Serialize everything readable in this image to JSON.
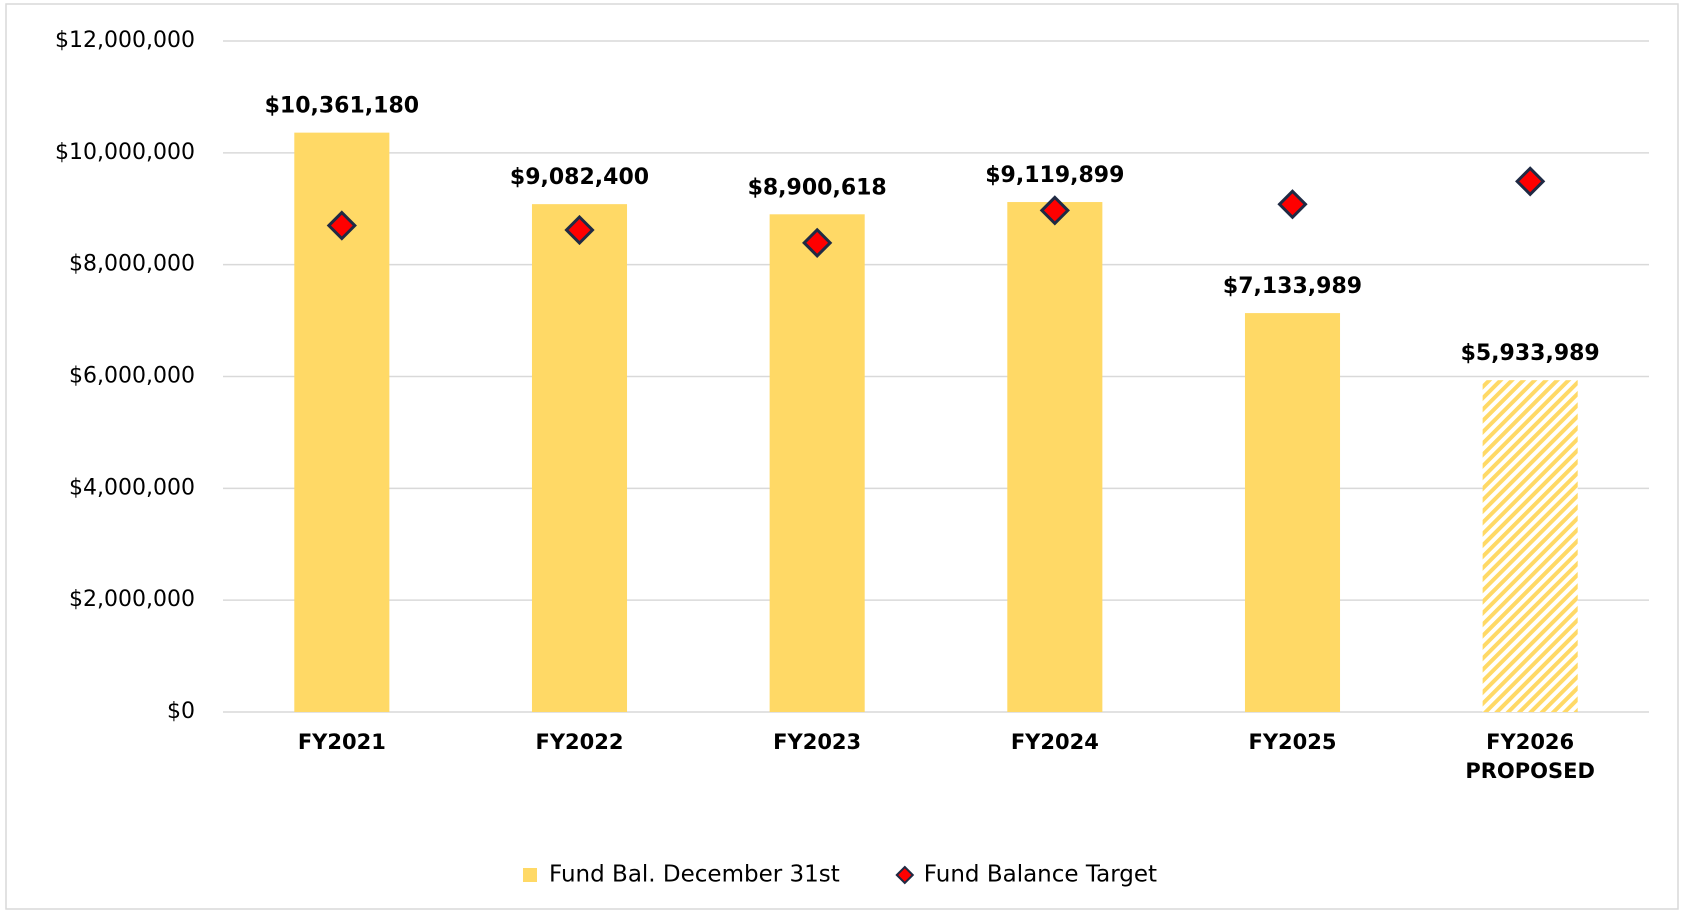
{
  "chart_data": {
    "type": "bar",
    "categories": [
      "FY2021",
      "FY2022",
      "FY2023",
      "FY2024",
      "FY2025",
      "FY2026 PROPOSED"
    ],
    "series": [
      {
        "name": "Fund Bal. December 31st",
        "type": "bar",
        "color": "#FFD966",
        "values": [
          10361180,
          9082400,
          8900618,
          9119899,
          7133989,
          5933989
        ],
        "value_labels": [
          "$10,361,180",
          "$9,082,400",
          "$8,900,618",
          "$9,119,899",
          "$7,133,989",
          "$5,933,989"
        ],
        "hatched": [
          false,
          false,
          false,
          false,
          false,
          true
        ]
      },
      {
        "name": "Fund Balance Target",
        "type": "diamond",
        "color": "#FF0000",
        "edge_color": "#1F2A44",
        "values": [
          8700000,
          8620000,
          8390000,
          8970000,
          9080000,
          9490000
        ]
      }
    ],
    "ylim": [
      0,
      12000000
    ],
    "yticks": [
      {
        "value": 0,
        "label": "$0"
      },
      {
        "value": 2000000,
        "label": "$2,000,000"
      },
      {
        "value": 4000000,
        "label": "$4,000,000"
      },
      {
        "value": 6000000,
        "label": "$6,000,000"
      },
      {
        "value": 8000000,
        "label": "$8,000,000"
      },
      {
        "value": 10000000,
        "label": "$10,000,000"
      },
      {
        "value": 12000000,
        "label": "$12,000,000"
      }
    ],
    "grid": true,
    "legend": "bottom"
  }
}
